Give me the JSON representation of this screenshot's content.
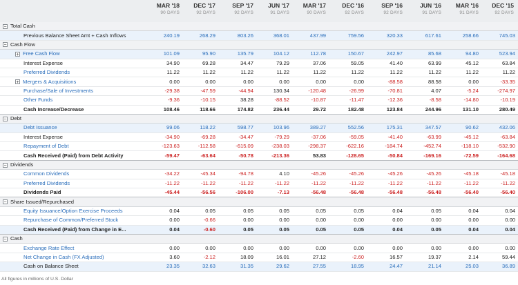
{
  "columns": [
    {
      "period": "MAR '18",
      "days": "90 DAYS"
    },
    {
      "period": "DEC '17",
      "days": "92 DAYS"
    },
    {
      "period": "SEP '17",
      "days": "92 DAYS"
    },
    {
      "period": "JUN '17",
      "days": "91 DAYS"
    },
    {
      "period": "MAR '17",
      "days": "90 DAYS"
    },
    {
      "period": "DEC '16",
      "days": "92 DAYS"
    },
    {
      "period": "SEP '16",
      "days": "92 DAYS"
    },
    {
      "period": "JUN '16",
      "days": "91 DAYS"
    },
    {
      "period": "MAR '16",
      "days": "91 DAYS"
    },
    {
      "period": "DEC '15",
      "days": "92 DAYS"
    }
  ],
  "rows": [
    {
      "type": "section",
      "label": "Total Cash",
      "toggle": "−"
    },
    {
      "type": "row",
      "label": "Previous Balance Sheet Amt + Cash Inflows",
      "link": false,
      "hl": true,
      "values": [
        "240.19",
        "268.29",
        "803.26",
        "368.01",
        "437.99",
        "759.56",
        "320.33",
        "617.61",
        "258.66",
        "745.03"
      ],
      "style": "pos"
    },
    {
      "type": "section",
      "label": "Cash Flow",
      "toggle": "−"
    },
    {
      "type": "row",
      "label": "Free Cash Flow",
      "link": true,
      "toggle": "+",
      "hl": true,
      "values": [
        "101.09",
        "95.90",
        "135.79",
        "104.12",
        "112.78",
        "150.67",
        "242.97",
        "85.68",
        "94.80",
        "523.94"
      ],
      "style": "pos"
    },
    {
      "type": "row",
      "label": "Interest Expense",
      "link": false,
      "values": [
        "34.90",
        "69.28",
        "34.47",
        "79.29",
        "37.06",
        "59.05",
        "41.40",
        "63.99",
        "45.12",
        "63.84"
      ],
      "style": "blk"
    },
    {
      "type": "row",
      "label": "Preferred Dividends",
      "link": true,
      "values": [
        "11.22",
        "11.22",
        "11.22",
        "11.22",
        "11.22",
        "11.22",
        "11.22",
        "11.22",
        "11.22",
        "11.22"
      ],
      "style": "blk"
    },
    {
      "type": "row",
      "label": "Mergers & Acquisitions",
      "link": true,
      "toggle": "+",
      "values": [
        "0.00",
        "0.00",
        "0.00",
        "0.00",
        "0.00",
        "0.00",
        "-88.58",
        "88.58",
        "0.00",
        "-33.35"
      ],
      "style": "mixed"
    },
    {
      "type": "row",
      "label": "Purchase/Sale of Investments",
      "link": true,
      "values": [
        "-29.38",
        "-47.59",
        "-44.94",
        "130.34",
        "-120.48",
        "-26.99",
        "-70.81",
        "4.07",
        "-5.24",
        "-274.97"
      ],
      "style": "mixed"
    },
    {
      "type": "row",
      "label": "Other Funds",
      "link": true,
      "values": [
        "-9.36",
        "-10.15",
        "38.28",
        "-88.52",
        "-10.87",
        "-11.47",
        "-12.36",
        "-8.58",
        "-14.80",
        "-10.19"
      ],
      "style": "mixed"
    },
    {
      "type": "total",
      "label": "Cash Increase/Decrease",
      "values": [
        "108.46",
        "118.66",
        "174.82",
        "236.44",
        "29.72",
        "182.48",
        "123.84",
        "244.96",
        "131.10",
        "280.49"
      ]
    },
    {
      "type": "section",
      "label": "Debt",
      "toggle": "−"
    },
    {
      "type": "row",
      "label": "Debt Issuance",
      "link": true,
      "hl": true,
      "values": [
        "99.06",
        "118.22",
        "598.77",
        "103.96",
        "389.27",
        "552.56",
        "175.31",
        "347.57",
        "90.62",
        "432.06"
      ],
      "style": "pos"
    },
    {
      "type": "row",
      "label": "Interest Expense",
      "link": false,
      "values": [
        "-34.90",
        "-69.28",
        "-34.47",
        "-79.29",
        "-37.06",
        "-59.05",
        "-41.40",
        "-63.99",
        "-45.12",
        "-63.84"
      ],
      "style": "mixed"
    },
    {
      "type": "row",
      "label": "Repayment of Debt",
      "link": true,
      "values": [
        "-123.63",
        "-112.58",
        "-615.09",
        "-238.03",
        "-298.37",
        "-622.16",
        "-184.74",
        "-452.74",
        "-118.10",
        "-532.90"
      ],
      "style": "mixed"
    },
    {
      "type": "total",
      "label": "Cash Received (Paid) from Debt Activity",
      "values": [
        "-59.47",
        "-63.64",
        "-50.78",
        "-213.36",
        "53.83",
        "-128.65",
        "-50.84",
        "-169.16",
        "-72.59",
        "-164.68"
      ]
    },
    {
      "type": "section",
      "label": "Dividends",
      "toggle": "−"
    },
    {
      "type": "row",
      "label": "Common Dividends",
      "link": true,
      "values": [
        "-34.22",
        "-45.34",
        "-94.78",
        "4.10",
        "-45.26",
        "-45.26",
        "-45.26",
        "-45.26",
        "-45.18",
        "-45.18"
      ],
      "style": "mixed"
    },
    {
      "type": "row",
      "label": "Preferred Dividends",
      "link": true,
      "values": [
        "-11.22",
        "-11.22",
        "-11.22",
        "-11.22",
        "-11.22",
        "-11.22",
        "-11.22",
        "-11.22",
        "-11.22",
        "-11.22"
      ],
      "style": "mixed"
    },
    {
      "type": "total",
      "label": "Dividends Paid",
      "values": [
        "-45.44",
        "-56.56",
        "-106.00",
        "-7.13",
        "-56.48",
        "-56.48",
        "-56.48",
        "-56.48",
        "-56.40",
        "-56.40"
      ]
    },
    {
      "type": "section",
      "label": "Share Issued/Repurchased",
      "toggle": "−"
    },
    {
      "type": "row",
      "label": "Equity Issuance/Option Exercise Proceeds",
      "link": true,
      "values": [
        "0.04",
        "0.05",
        "0.05",
        "0.05",
        "0.05",
        "0.05",
        "0.04",
        "0.05",
        "0.04",
        "0.04"
      ],
      "style": "blk"
    },
    {
      "type": "row",
      "label": "Repurchase of Common/Preferred Stock",
      "link": true,
      "values": [
        "0.00",
        "-0.66",
        "0.00",
        "0.00",
        "0.00",
        "0.00",
        "0.00",
        "0.00",
        "0.00",
        "0.00"
      ],
      "style": "mixed"
    },
    {
      "type": "total",
      "label": "Cash Received (Paid) from Change in E...",
      "hl": true,
      "values": [
        "0.04",
        "-0.60",
        "0.05",
        "0.05",
        "0.05",
        "0.05",
        "0.04",
        "0.05",
        "0.04",
        "0.04"
      ]
    },
    {
      "type": "section",
      "label": "Cash",
      "toggle": "−"
    },
    {
      "type": "row",
      "label": "Exchange Rate Effect",
      "link": true,
      "values": [
        "0.00",
        "0.00",
        "0.00",
        "0.00",
        "0.00",
        "0.00",
        "0.00",
        "0.00",
        "0.00",
        "0.00"
      ],
      "style": "blk"
    },
    {
      "type": "row",
      "label": "Net Change in Cash (FX Adjusted)",
      "link": true,
      "values": [
        "3.60",
        "-2.12",
        "18.09",
        "16.01",
        "27.12",
        "-2.60",
        "16.57",
        "19.37",
        "2.14",
        "59.44"
      ],
      "style": "mixed"
    },
    {
      "type": "row",
      "label": "Cash on Balance Sheet",
      "link": false,
      "hl": true,
      "values": [
        "23.35",
        "32.63",
        "31.35",
        "29.62",
        "27.55",
        "18.95",
        "24.47",
        "21.14",
        "25.03",
        "36.89"
      ],
      "style": "pos"
    }
  ],
  "footer": "All figures in millions of U.S. Dollar",
  "colors": {
    "negative": "#cc2222",
    "link": "#2a6ebb",
    "header_bg": "#eceef0",
    "section_bg": "#f1f2f4",
    "highlight_bg": "#eaf2fb"
  }
}
